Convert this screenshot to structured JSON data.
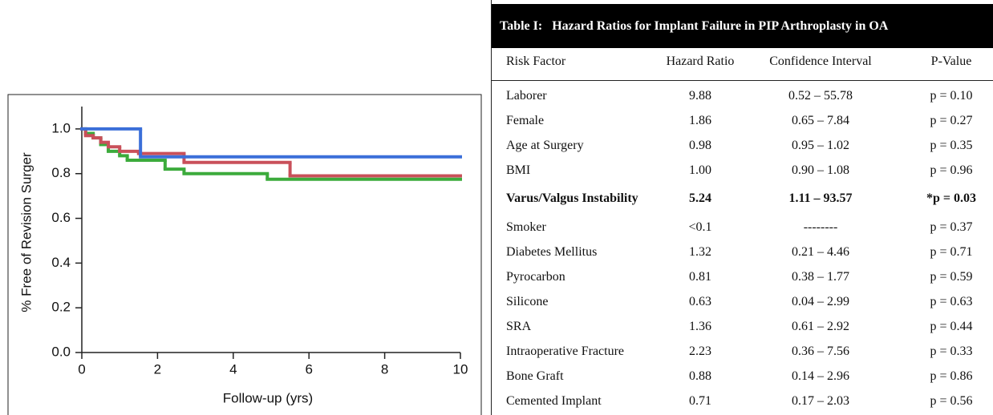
{
  "chart_data": {
    "type": "step",
    "xlabel": "Follow-up (yrs)",
    "ylabel": "% Free of Revision Surger",
    "xlim": [
      0,
      10
    ],
    "ylim": [
      0,
      1.1
    ],
    "xticks": [
      0,
      2,
      4,
      6,
      8,
      10
    ],
    "yticks": [
      {
        "value": 0,
        "label": "0.0"
      },
      {
        "value": 0.2,
        "label": "0.2"
      },
      {
        "value": 0.4,
        "label": "0.4"
      },
      {
        "value": 0.6,
        "label": "0.6"
      },
      {
        "value": 0.8,
        "label": "0.8"
      },
      {
        "value": 1,
        "label": "1.0"
      }
    ],
    "series": [
      {
        "color": "#3cab3c",
        "x": [
          0,
          0.1,
          0.3,
          0.5,
          0.7,
          1.0,
          1.2,
          2.2,
          2.7,
          4.9
        ],
        "values": [
          1.0,
          0.98,
          0.96,
          0.93,
          0.9,
          0.88,
          0.86,
          0.82,
          0.8,
          0.775
        ]
      },
      {
        "color": "#c9505a",
        "x": [
          0,
          0.1,
          0.3,
          0.5,
          0.7,
          1.0,
          1.5,
          2.7,
          5.5
        ],
        "values": [
          1.0,
          0.97,
          0.96,
          0.94,
          0.92,
          0.9,
          0.89,
          0.85,
          0.79
        ]
      },
      {
        "color": "#3b6fd9",
        "x": [
          0,
          1.55
        ],
        "values": [
          1.0,
          0.875
        ]
      }
    ]
  },
  "table": {
    "title": "Table I:   Hazard Ratios for Implant Failure in PIP Arthroplasty in OA",
    "columns": [
      "Risk Factor",
      "Hazard Ratio",
      "Confidence Interval",
      "P-Value"
    ],
    "bold_row": 4,
    "rows": [
      [
        "Laborer",
        "9.88",
        "0.52 – 55.78",
        "p = 0.10"
      ],
      [
        "Female",
        "1.86",
        "0.65 – 7.84",
        "p = 0.27"
      ],
      [
        "Age at Surgery",
        "0.98",
        "0.95 – 1.02",
        "p = 0.35"
      ],
      [
        "BMI",
        "1.00",
        "0.90 – 1.08",
        "p = 0.96"
      ],
      [
        "Varus/Valgus Instability",
        "5.24",
        "1.11 – 93.57",
        "*p = 0.03"
      ],
      [
        "Smoker",
        "<0.1",
        "--------",
        "p = 0.37"
      ],
      [
        "Diabetes Mellitus",
        "1.32",
        "0.21 – 4.46",
        "p = 0.71"
      ],
      [
        "Pyrocarbon",
        "0.81",
        "0.38 – 1.77",
        "p = 0.59"
      ],
      [
        "Silicone",
        "0.63",
        "0.04 – 2.99",
        "p = 0.63"
      ],
      [
        "SRA",
        "1.36",
        "0.61 – 2.92",
        "p = 0.44"
      ],
      [
        "Intraoperative Fracture",
        "2.23",
        "0.36 – 7.56",
        "p = 0.33"
      ],
      [
        "Bone Graft",
        "0.88",
        "0.14 – 2.96",
        "p = 0.86"
      ],
      [
        "Cemented Implant",
        "0.71",
        "0.17 – 2.03",
        "p = 0.56"
      ]
    ]
  }
}
